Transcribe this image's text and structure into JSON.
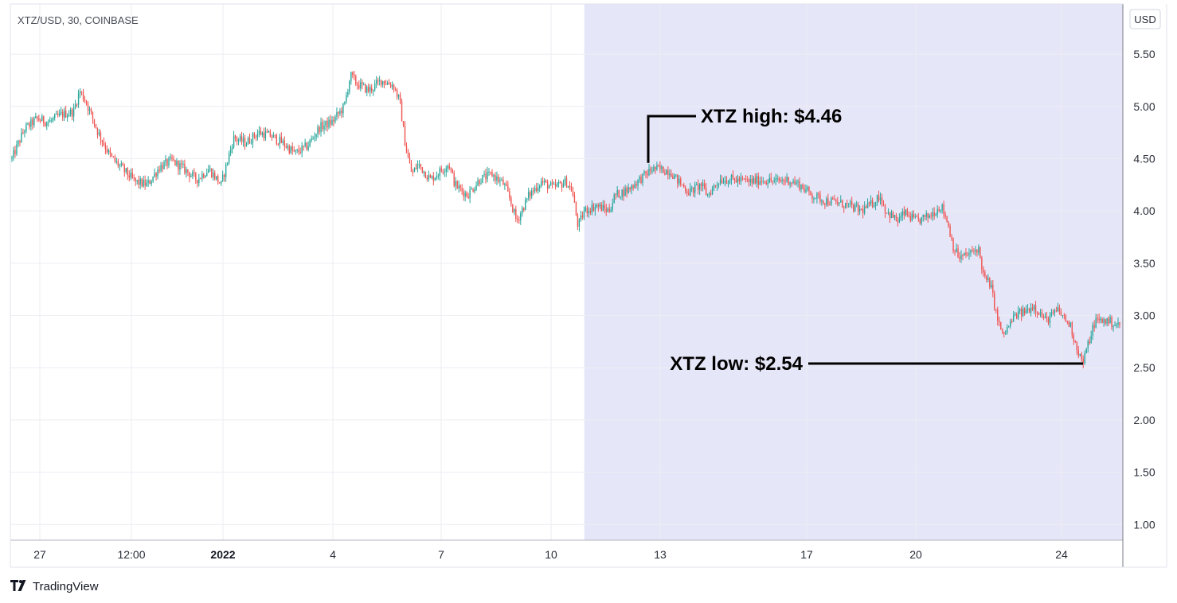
{
  "chart_data": {
    "type": "candlestick",
    "title": "XTZ/USD, 30, COINBASE",
    "currency": "USD",
    "y_ticks": [
      "1.00",
      "1.50",
      "2.00",
      "2.50",
      "3.00",
      "3.50",
      "4.00",
      "4.50",
      "5.00",
      "5.50"
    ],
    "ylim": [
      0.85,
      5.98
    ],
    "x_labels": [
      {
        "label": "27",
        "bold": false
      },
      {
        "label": "12:00",
        "bold": false
      },
      {
        "label": "2022",
        "bold": true
      },
      {
        "label": "4",
        "bold": false
      },
      {
        "label": "7",
        "bold": false
      },
      {
        "label": "10",
        "bold": false
      },
      {
        "label": "13",
        "bold": false
      },
      {
        "label": "17",
        "bold": false
      },
      {
        "label": "20",
        "bold": false
      },
      {
        "label": "24",
        "bold": false
      }
    ],
    "price_path": [
      [
        0,
        4.5
      ],
      [
        2,
        4.78
      ],
      [
        4,
        4.88
      ],
      [
        6,
        4.85
      ],
      [
        8,
        4.92
      ],
      [
        10,
        4.95
      ],
      [
        11,
        5.15
      ],
      [
        12,
        5.05
      ],
      [
        14,
        4.75
      ],
      [
        16,
        4.52
      ],
      [
        18,
        4.4
      ],
      [
        20,
        4.28
      ],
      [
        22,
        4.25
      ],
      [
        24,
        4.42
      ],
      [
        26,
        4.48
      ],
      [
        28,
        4.4
      ],
      [
        30,
        4.3
      ],
      [
        32,
        4.4
      ],
      [
        34,
        4.25
      ],
      [
        36,
        4.7
      ],
      [
        38,
        4.65
      ],
      [
        40,
        4.75
      ],
      [
        42,
        4.72
      ],
      [
        44,
        4.65
      ],
      [
        46,
        4.55
      ],
      [
        48,
        4.62
      ],
      [
        50,
        4.8
      ],
      [
        52,
        4.85
      ],
      [
        54,
        5.0
      ],
      [
        55,
        5.3
      ],
      [
        56,
        5.22
      ],
      [
        58,
        5.15
      ],
      [
        60,
        5.25
      ],
      [
        62,
        5.2
      ],
      [
        63,
        5.05
      ],
      [
        64,
        4.6
      ],
      [
        65,
        4.35
      ],
      [
        66,
        4.45
      ],
      [
        68,
        4.3
      ],
      [
        70,
        4.4
      ],
      [
        71,
        4.45
      ],
      [
        72,
        4.25
      ],
      [
        74,
        4.15
      ],
      [
        76,
        4.3
      ],
      [
        78,
        4.35
      ],
      [
        80,
        4.25
      ],
      [
        81,
        4.1
      ],
      [
        82,
        3.9
      ],
      [
        84,
        4.15
      ],
      [
        86,
        4.28
      ],
      [
        88,
        4.22
      ],
      [
        90,
        4.28
      ],
      [
        91,
        4.2
      ],
      [
        92,
        3.85
      ],
      [
        93,
        4.0
      ],
      [
        95,
        4.05
      ],
      [
        97,
        4.0
      ],
      [
        98,
        4.15
      ],
      [
        100,
        4.2
      ],
      [
        102,
        4.3
      ],
      [
        104,
        4.4
      ],
      [
        105,
        4.4
      ],
      [
        107,
        4.38
      ],
      [
        108,
        4.3
      ],
      [
        110,
        4.18
      ],
      [
        112,
        4.25
      ],
      [
        113,
        4.15
      ],
      [
        115,
        4.3
      ],
      [
        117,
        4.3
      ],
      [
        120,
        4.28
      ],
      [
        122,
        4.3
      ],
      [
        124,
        4.28
      ],
      [
        126,
        4.3
      ],
      [
        128,
        4.25
      ],
      [
        130,
        4.15
      ],
      [
        132,
        4.1
      ],
      [
        134,
        4.08
      ],
      [
        136,
        4.05
      ],
      [
        138,
        4.0
      ],
      [
        140,
        4.08
      ],
      [
        141,
        4.15
      ],
      [
        142,
        4.0
      ],
      [
        144,
        3.9
      ],
      [
        145,
        3.98
      ],
      [
        147,
        3.9
      ],
      [
        149,
        3.95
      ],
      [
        151,
        4.05
      ],
      [
        152,
        3.9
      ],
      [
        153,
        3.65
      ],
      [
        154,
        3.55
      ],
      [
        156,
        3.6
      ],
      [
        157,
        3.65
      ],
      [
        158,
        3.35
      ],
      [
        159,
        3.3
      ],
      [
        160,
        3.0
      ],
      [
        161,
        2.8
      ],
      [
        162,
        2.9
      ],
      [
        163,
        3.0
      ],
      [
        165,
        3.05
      ],
      [
        166,
        3.1
      ],
      [
        168,
        2.95
      ],
      [
        170,
        3.05
      ],
      [
        172,
        2.9
      ],
      [
        173,
        2.7
      ],
      [
        174,
        2.54
      ],
      [
        175,
        2.75
      ],
      [
        176,
        2.95
      ],
      [
        178,
        2.95
      ],
      [
        180,
        2.9
      ]
    ],
    "highlight_start_step": 93,
    "annotations": [
      {
        "label": "XTZ high: $4.46",
        "value": 4.46
      },
      {
        "label": "XTZ low: $2.54",
        "value": 2.54
      }
    ],
    "up_color": "#26a69a",
    "down_color": "#ef5350",
    "highlight_color": "#e6e6f9",
    "grid": true
  },
  "branding": {
    "name": "TradingView"
  }
}
